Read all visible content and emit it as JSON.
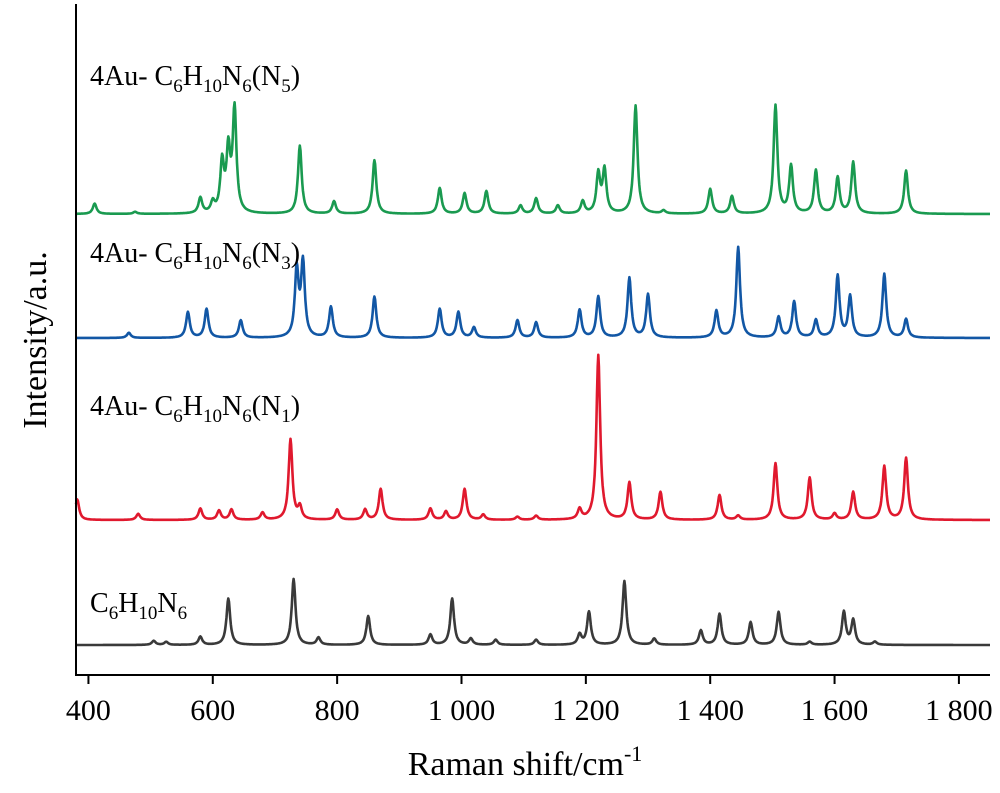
{
  "chart_data": {
    "type": "line",
    "xlabel": "Raman shift/cm",
    "xlabel_sup": "-1",
    "ylabel": "Intensity/a.u.",
    "xlim": [
      380,
      1850
    ],
    "x_ticks": [
      400,
      600,
      800,
      1000,
      1200,
      1400,
      1600,
      1800
    ],
    "x_tick_labels": [
      "400",
      "600",
      "800",
      "1 000",
      "1 200",
      "1 400",
      "1 600",
      "1 800"
    ],
    "grid": false,
    "legend": "inline labels above each trace",
    "series": [
      {
        "label_parts": [
          [
            "4Au- C",
            ""
          ],
          [
            "6",
            "sub"
          ],
          [
            "H",
            ""
          ],
          [
            "10",
            "sub"
          ],
          [
            "N",
            ""
          ],
          [
            "6",
            "sub"
          ],
          [
            "(N",
            ""
          ],
          [
            "5",
            "sub"
          ],
          [
            ")",
            ""
          ]
        ],
        "color": "#1a9a50",
        "offset": 3,
        "peaks": [
          [
            410,
            0.1
          ],
          [
            475,
            0.02
          ],
          [
            580,
            0.15
          ],
          [
            600,
            0.1
          ],
          [
            615,
            0.48
          ],
          [
            625,
            0.58
          ],
          [
            635,
            1.0
          ],
          [
            740,
            0.66
          ],
          [
            795,
            0.12
          ],
          [
            860,
            0.52
          ],
          [
            965,
            0.25
          ],
          [
            1005,
            0.2
          ],
          [
            1040,
            0.22
          ],
          [
            1095,
            0.08
          ],
          [
            1120,
            0.15
          ],
          [
            1155,
            0.08
          ],
          [
            1195,
            0.12
          ],
          [
            1220,
            0.38
          ],
          [
            1230,
            0.42
          ],
          [
            1280,
            1.05
          ],
          [
            1325,
            0.03
          ],
          [
            1400,
            0.24
          ],
          [
            1435,
            0.17
          ],
          [
            1505,
            1.05
          ],
          [
            1530,
            0.46
          ],
          [
            1570,
            0.42
          ],
          [
            1605,
            0.35
          ],
          [
            1630,
            0.5
          ],
          [
            1715,
            0.42
          ]
        ]
      },
      {
        "label_parts": [
          [
            "4Au- C",
            ""
          ],
          [
            "6",
            "sub"
          ],
          [
            "H",
            ""
          ],
          [
            "10",
            "sub"
          ],
          [
            "N",
            ""
          ],
          [
            "6",
            "sub"
          ],
          [
            "(N",
            ""
          ],
          [
            "3",
            "sub"
          ],
          [
            ")",
            ""
          ]
        ],
        "color": "#1257a5",
        "offset": 2,
        "peaks": [
          [
            465,
            0.05
          ],
          [
            560,
            0.25
          ],
          [
            590,
            0.28
          ],
          [
            645,
            0.17
          ],
          [
            735,
            0.65
          ],
          [
            745,
            0.72
          ],
          [
            790,
            0.3
          ],
          [
            860,
            0.4
          ],
          [
            965,
            0.28
          ],
          [
            995,
            0.25
          ],
          [
            1020,
            0.1
          ],
          [
            1090,
            0.17
          ],
          [
            1120,
            0.15
          ],
          [
            1190,
            0.27
          ],
          [
            1220,
            0.4
          ],
          [
            1270,
            0.58
          ],
          [
            1300,
            0.42
          ],
          [
            1410,
            0.26
          ],
          [
            1445,
            0.88
          ],
          [
            1510,
            0.2
          ],
          [
            1535,
            0.35
          ],
          [
            1570,
            0.17
          ],
          [
            1605,
            0.6
          ],
          [
            1625,
            0.4
          ],
          [
            1680,
            0.62
          ],
          [
            1715,
            0.18
          ]
        ]
      },
      {
        "label_parts": [
          [
            "4Au- C",
            ""
          ],
          [
            "6",
            "sub"
          ],
          [
            "H",
            ""
          ],
          [
            "10",
            "sub"
          ],
          [
            "N",
            ""
          ],
          [
            "6",
            "sub"
          ],
          [
            "(N",
            ""
          ],
          [
            "1",
            "sub"
          ],
          [
            ")",
            ""
          ]
        ],
        "color": "#e0192e",
        "offset": 1,
        "peaks": [
          [
            382,
            0.2
          ],
          [
            480,
            0.06
          ],
          [
            580,
            0.11
          ],
          [
            610,
            0.09
          ],
          [
            630,
            0.1
          ],
          [
            680,
            0.07
          ],
          [
            725,
            0.78
          ],
          [
            740,
            0.12
          ],
          [
            800,
            0.1
          ],
          [
            845,
            0.1
          ],
          [
            870,
            0.3
          ],
          [
            950,
            0.11
          ],
          [
            975,
            0.08
          ],
          [
            1005,
            0.3
          ],
          [
            1035,
            0.05
          ],
          [
            1090,
            0.03
          ],
          [
            1120,
            0.04
          ],
          [
            1190,
            0.1
          ],
          [
            1220,
            1.6
          ],
          [
            1270,
            0.36
          ],
          [
            1320,
            0.27
          ],
          [
            1415,
            0.24
          ],
          [
            1445,
            0.04
          ],
          [
            1505,
            0.55
          ],
          [
            1560,
            0.41
          ],
          [
            1600,
            0.06
          ],
          [
            1630,
            0.27
          ],
          [
            1680,
            0.52
          ],
          [
            1715,
            0.6
          ]
        ]
      },
      {
        "label_parts": [
          [
            "C",
            ""
          ],
          [
            "6",
            "sub"
          ],
          [
            "H",
            ""
          ],
          [
            "10",
            "sub"
          ],
          [
            "N",
            ""
          ],
          [
            "6",
            "sub"
          ]
        ],
        "color": "#3a3a3a",
        "offset": 0,
        "peaks": [
          [
            505,
            0.04
          ],
          [
            525,
            0.03
          ],
          [
            580,
            0.08
          ],
          [
            625,
            0.45
          ],
          [
            730,
            0.64
          ],
          [
            770,
            0.07
          ],
          [
            850,
            0.28
          ],
          [
            950,
            0.1
          ],
          [
            985,
            0.45
          ],
          [
            1015,
            0.06
          ],
          [
            1055,
            0.05
          ],
          [
            1120,
            0.05
          ],
          [
            1190,
            0.1
          ],
          [
            1205,
            0.32
          ],
          [
            1262,
            0.62
          ],
          [
            1310,
            0.06
          ],
          [
            1385,
            0.14
          ],
          [
            1415,
            0.3
          ],
          [
            1465,
            0.22
          ],
          [
            1510,
            0.32
          ],
          [
            1560,
            0.03
          ],
          [
            1615,
            0.32
          ],
          [
            1630,
            0.24
          ],
          [
            1665,
            0.03
          ]
        ]
      }
    ]
  }
}
